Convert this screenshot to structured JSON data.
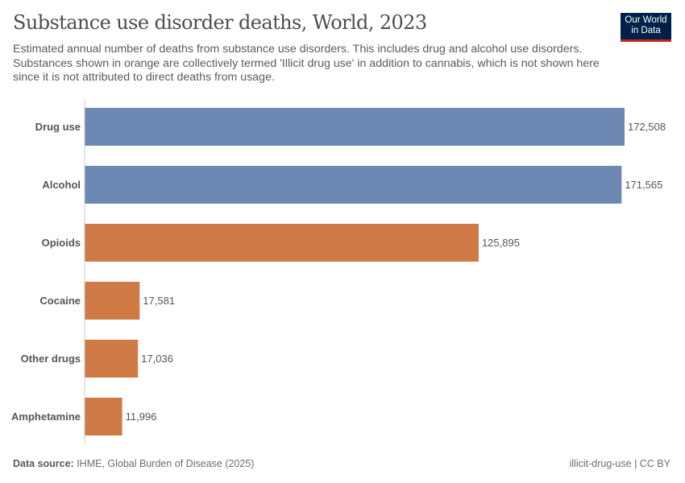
{
  "title": "Substance use disorder deaths, World, 2023",
  "subtitle": "Estimated annual number of deaths from substance use disorders. This includes drug and alcohol use disorders. Substances shown in orange are collectively termed 'Illicit drug use' in addition to cannabis, which is not shown here since it is not attributed to direct deaths from usage.",
  "logo": "Our World in Data",
  "footer": {
    "source_label": "Data source:",
    "source_text": " IHME, Global Burden of Disease (2025)",
    "right": "illicit-drug-use | CC BY"
  },
  "colors": {
    "blue": "#6d88b2",
    "orange": "#cf7a45",
    "logo_bg": "#002147",
    "logo_bar": "#ce261e"
  },
  "chart_data": {
    "type": "bar",
    "orientation": "horizontal",
    "categories": [
      "Drug use",
      "Alcohol",
      "Opioids",
      "Cocaine",
      "Other drugs",
      "Amphetamine"
    ],
    "values": [
      172508,
      171565,
      125895,
      17581,
      17036,
      11996
    ],
    "labels": [
      "172,508",
      "171,565",
      "125,895",
      "17,581",
      "17,036",
      "11,996"
    ],
    "bar_colors": [
      "blue",
      "blue",
      "orange",
      "orange",
      "orange",
      "orange"
    ],
    "xlim": [
      0,
      172508
    ],
    "grid": false
  }
}
